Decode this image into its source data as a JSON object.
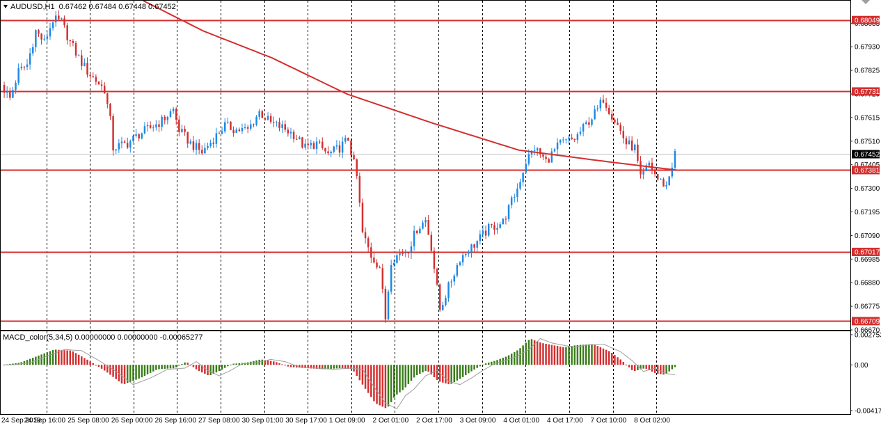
{
  "window": {
    "symbol_header": "AUDUSD,H1",
    "ohlc": "0.67462 0.67484 0.67448 0.67452",
    "macd_header": "MACD_color(5,34,5) 0.00000000 0.00000000 -0.00065277"
  },
  "colors": {
    "bull": "#1e88e5",
    "bear": "#d32f2f",
    "ma": "#d32f2f",
    "level": "#d32f2f",
    "macd_up": "#3a7d1a",
    "macd_down": "#d32f2f",
    "grid": "#000000",
    "signal": "#9e9e9e",
    "current_tag": "#000000"
  },
  "chart_data": [
    {
      "type": "candlestick",
      "title": "AUDUSD,H1",
      "ylim": [
        0.6667,
        0.68135
      ],
      "y_ticks": [
        "0.68035",
        "0.67930",
        "0.67825",
        "0.67720",
        "0.67615",
        "0.67510",
        "0.67405",
        "0.67300",
        "0.67195",
        "0.67090",
        "0.66985",
        "0.66880",
        "0.66775",
        "0.66670"
      ],
      "x_labels": [
        "24 Sep 2019",
        "24 Sep 16:00",
        "25 Sep 08:00",
        "26 Sep 00:00",
        "26 Sep 16:00",
        "27 Sep 08:00",
        "30 Sep 01:00",
        "30 Sep 17:00",
        "1 Oct 09:00",
        "2 Oct 01:00",
        "2 Oct 17:00",
        "3 Oct 09:00",
        "4 Oct 01:00",
        "4 Oct 17:00",
        "7 Oct 10:00",
        "8 Oct 02:00"
      ],
      "grid": true,
      "horizontal_levels": [
        "0.68049",
        "0.67731",
        "0.67381",
        "0.67017",
        "0.66709"
      ],
      "current_price": "0.67452",
      "candle_count": 235,
      "close_path": [
        [
          0,
          0.6776
        ],
        [
          3,
          0.677
        ],
        [
          6,
          0.6782
        ],
        [
          9,
          0.6785
        ],
        [
          12,
          0.68
        ],
        [
          15,
          0.6795
        ],
        [
          18,
          0.6805
        ],
        [
          21,
          0.6804
        ],
        [
          24,
          0.6795
        ],
        [
          27,
          0.6788
        ],
        [
          30,
          0.6782
        ],
        [
          33,
          0.6778
        ],
        [
          36,
          0.6774
        ],
        [
          38,
          0.676
        ],
        [
          39,
          0.6748
        ],
        [
          44,
          0.675
        ],
        [
          48,
          0.6754
        ],
        [
          52,
          0.6757
        ],
        [
          56,
          0.676
        ],
        [
          60,
          0.6765
        ],
        [
          62,
          0.6756
        ],
        [
          66,
          0.675
        ],
        [
          70,
          0.6746
        ],
        [
          74,
          0.6752
        ],
        [
          78,
          0.6758
        ],
        [
          82,
          0.6756
        ],
        [
          86,
          0.6756
        ],
        [
          90,
          0.6764
        ],
        [
          94,
          0.6759
        ],
        [
          98,
          0.6757
        ],
        [
          102,
          0.6754
        ],
        [
          106,
          0.6748
        ],
        [
          110,
          0.675
        ],
        [
          114,
          0.6745
        ],
        [
          118,
          0.6748
        ],
        [
          121,
          0.6752
        ],
        [
          124,
          0.6735
        ],
        [
          126,
          0.671
        ],
        [
          129,
          0.67
        ],
        [
          132,
          0.6695
        ],
        [
          134,
          0.6672
        ],
        [
          136,
          0.6698
        ],
        [
          139,
          0.6701
        ],
        [
          142,
          0.6703
        ],
        [
          145,
          0.6712
        ],
        [
          148,
          0.6716
        ],
        [
          150,
          0.6704
        ],
        [
          153,
          0.6676
        ],
        [
          156,
          0.6686
        ],
        [
          160,
          0.6699
        ],
        [
          165,
          0.6705
        ],
        [
          170,
          0.6712
        ],
        [
          175,
          0.6715
        ],
        [
          180,
          0.673
        ],
        [
          183,
          0.6742
        ],
        [
          186,
          0.6748
        ],
        [
          190,
          0.6742
        ],
        [
          195,
          0.675
        ],
        [
          200,
          0.6752
        ],
        [
          205,
          0.676
        ],
        [
          208,
          0.6765
        ],
        [
          210,
          0.677
        ],
        [
          212,
          0.6765
        ],
        [
          215,
          0.6758
        ],
        [
          218,
          0.675
        ],
        [
          221,
          0.6748
        ],
        [
          223,
          0.6734
        ],
        [
          226,
          0.6741
        ],
        [
          229,
          0.6734
        ],
        [
          232,
          0.6731
        ],
        [
          235,
          0.67452
        ]
      ],
      "ma_path": [
        [
          49,
          0.68135
        ],
        [
          70,
          0.68
        ],
        [
          94,
          0.6788
        ],
        [
          120,
          0.6772
        ],
        [
          150,
          0.6759
        ],
        [
          180,
          0.6747
        ],
        [
          210,
          0.6742
        ],
        [
          235,
          0.67381
        ]
      ]
    },
    {
      "type": "bar",
      "title": "MACD_color(5,34,5)",
      "ylim": [
        -0.00417,
        0.00275
      ],
      "y_ticks": [
        "0.002753",
        "0.00",
        "-0.00417"
      ],
      "macd_path": [
        [
          0,
          0.0
        ],
        [
          6,
          0.0002
        ],
        [
          12,
          0.0008
        ],
        [
          18,
          0.0014
        ],
        [
          24,
          0.0013
        ],
        [
          30,
          0.0004
        ],
        [
          36,
          -0.0006
        ],
        [
          42,
          -0.0018
        ],
        [
          48,
          -0.0012
        ],
        [
          54,
          -0.0004
        ],
        [
          60,
          -0.0003
        ],
        [
          64,
          0.0003
        ],
        [
          68,
          -0.0005
        ],
        [
          72,
          -0.001
        ],
        [
          76,
          -0.0005
        ],
        [
          80,
          0.0001
        ],
        [
          85,
          0.0002
        ],
        [
          90,
          0.0005
        ],
        [
          95,
          0.0003
        ],
        [
          100,
          -0.0002
        ],
        [
          106,
          -0.0003
        ],
        [
          112,
          -0.0004
        ],
        [
          118,
          -0.0003
        ],
        [
          122,
          -0.0004
        ],
        [
          126,
          -0.002
        ],
        [
          130,
          -0.0035
        ],
        [
          134,
          -0.004
        ],
        [
          137,
          -0.0028
        ],
        [
          140,
          -0.0022
        ],
        [
          144,
          -0.001
        ],
        [
          148,
          -0.0005
        ],
        [
          152,
          -0.0015
        ],
        [
          156,
          -0.0018
        ],
        [
          160,
          -0.0012
        ],
        [
          164,
          -0.0005
        ],
        [
          168,
          0.0001
        ],
        [
          172,
          0.0004
        ],
        [
          176,
          0.0008
        ],
        [
          180,
          0.0014
        ],
        [
          184,
          0.0024
        ],
        [
          188,
          0.002
        ],
        [
          192,
          0.0018
        ],
        [
          196,
          0.0016
        ],
        [
          200,
          0.0018
        ],
        [
          206,
          0.0019
        ],
        [
          212,
          0.0012
        ],
        [
          216,
          0.0004
        ],
        [
          220,
          -0.0006
        ],
        [
          224,
          -0.0003
        ],
        [
          228,
          -0.0008
        ],
        [
          231,
          -0.0009
        ],
        [
          235,
          -0.0001
        ]
      ]
    }
  ]
}
